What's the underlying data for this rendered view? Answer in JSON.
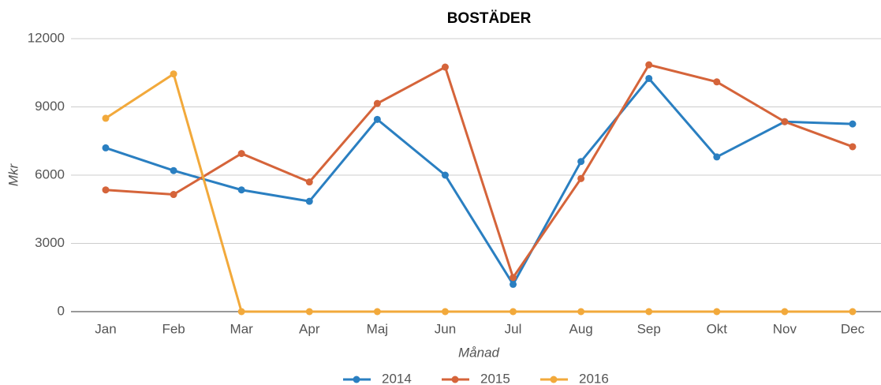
{
  "chart_data": {
    "type": "line",
    "title": "BOSTÄDER",
    "x_label": "Månad",
    "y_label": "Mkr",
    "categories": [
      "Jan",
      "Feb",
      "Mar",
      "Apr",
      "Maj",
      "Jun",
      "Jul",
      "Aug",
      "Sep",
      "Okt",
      "Nov",
      "Dec"
    ],
    "series": [
      {
        "name": "2014",
        "color": "#2a7fc1",
        "values": [
          7200,
          6200,
          5350,
          4850,
          8450,
          6000,
          1200,
          6600,
          10250,
          6800,
          8350,
          8250
        ]
      },
      {
        "name": "2015",
        "color": "#d5643a",
        "values": [
          5350,
          5150,
          6950,
          5700,
          9150,
          10750,
          1500,
          5850,
          10850,
          10100,
          8350,
          7250
        ]
      },
      {
        "name": "2016",
        "color": "#f2a93b",
        "values": [
          8500,
          10450,
          0,
          0,
          0,
          0,
          0,
          0,
          0,
          0,
          0,
          0
        ]
      }
    ],
    "ylim": [
      0,
      12000
    ],
    "yticks": [
      0,
      3000,
      6000,
      9000,
      12000
    ],
    "grid": true,
    "legend": "bottom"
  }
}
